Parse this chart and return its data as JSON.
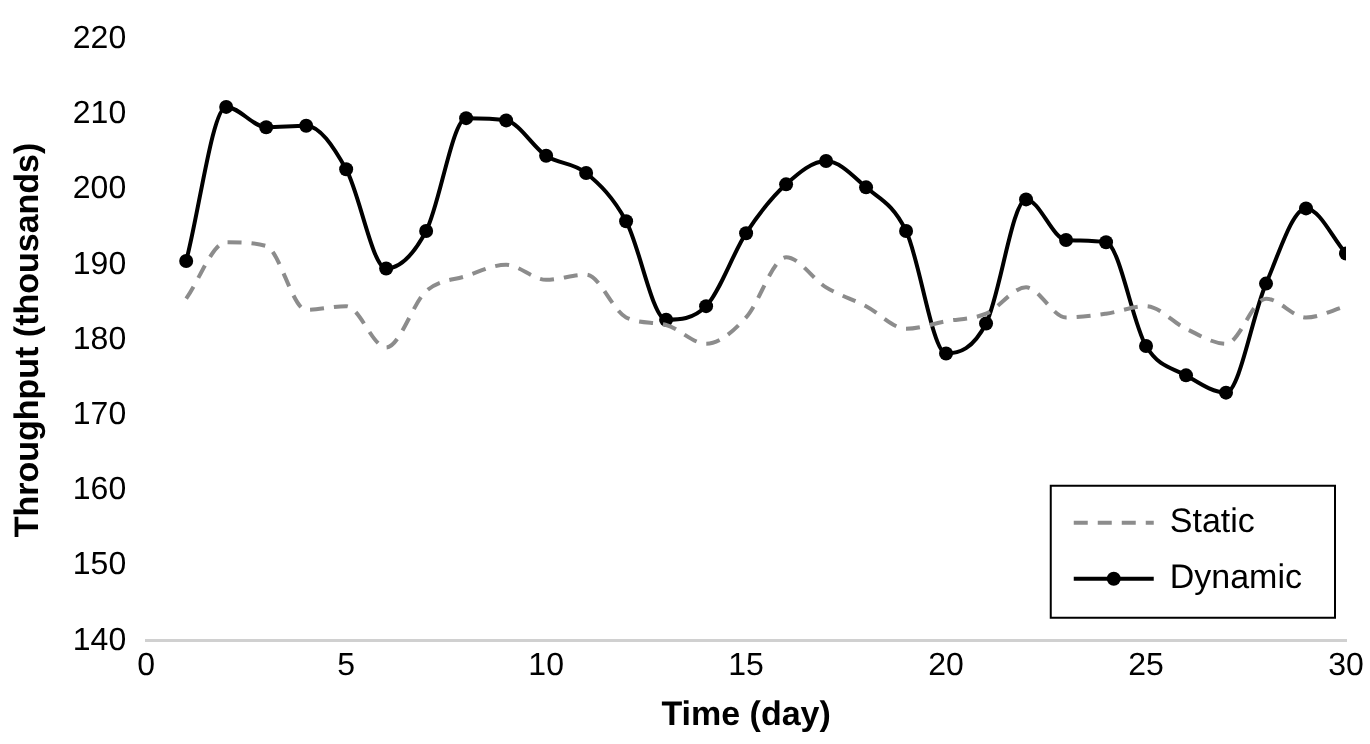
{
  "chart_data": {
    "type": "line",
    "xlabel": "Time (day)",
    "ylabel": "Throughput (thousands)",
    "x": [
      1,
      2,
      3,
      4,
      5,
      6,
      7,
      8,
      9,
      10,
      11,
      12,
      13,
      14,
      15,
      16,
      17,
      18,
      19,
      20,
      21,
      22,
      23,
      24,
      25,
      26,
      27,
      28,
      29,
      30
    ],
    "xlim": [
      0,
      30
    ],
    "xticks": [
      0,
      5,
      10,
      15,
      20,
      25,
      30
    ],
    "ylim": [
      140,
      220
    ],
    "yticks": [
      140,
      150,
      160,
      170,
      180,
      190,
      200,
      210,
      220
    ],
    "grid": false,
    "legend": "bottom right",
    "series": [
      {
        "name": "Static",
        "color": "#8c8c8c",
        "line_style": "dashed",
        "marker": "none",
        "values": [
          185.5,
          193,
          192.5,
          184,
          184.5,
          179,
          186.5,
          188.5,
          190,
          188,
          188.7,
          183,
          182,
          179.5,
          183,
          191,
          187,
          184.5,
          181.5,
          182.5,
          183.5,
          187,
          183,
          183.5,
          184.5,
          181.5,
          179.5,
          185.5,
          183,
          184.5
        ]
      },
      {
        "name": "Dynamic",
        "color": "#000000",
        "line_style": "solid",
        "marker": "circle",
        "values": [
          190.5,
          211,
          208.3,
          208.5,
          202.7,
          189.5,
          194.5,
          209.5,
          209.2,
          204.5,
          202.2,
          195.8,
          182.7,
          184.5,
          194.2,
          200.7,
          203.8,
          200.3,
          194.5,
          178.2,
          182.2,
          198.7,
          193.3,
          193,
          179.2,
          175.3,
          173,
          187.5,
          197.5,
          191.5
        ]
      }
    ]
  }
}
